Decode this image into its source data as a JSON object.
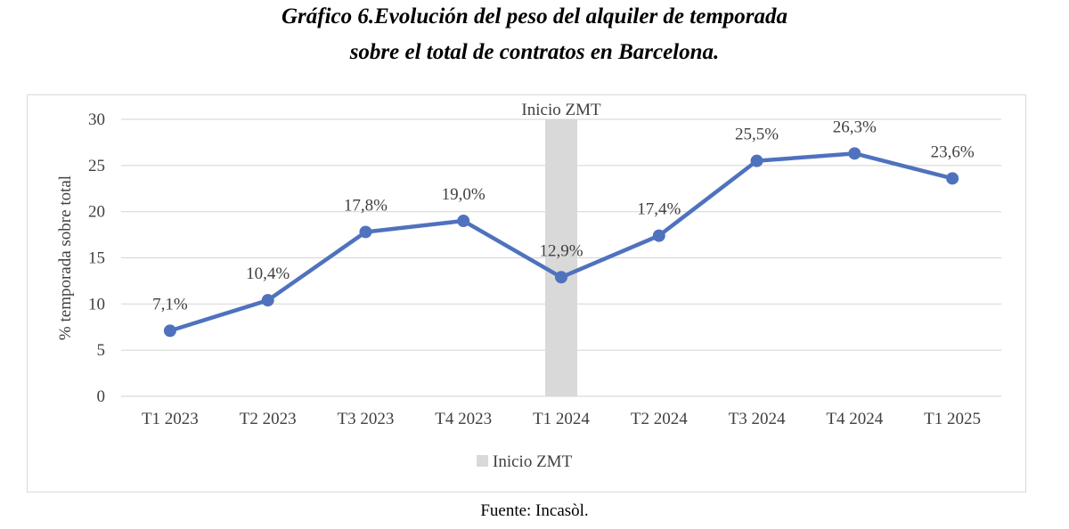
{
  "title": {
    "line1": "Gráfico 6.Evolución del peso del alquiler de temporada",
    "line2": "sobre el total de contratos en Barcelona."
  },
  "source": "Fuente: Incasòl.",
  "colors": {
    "line": "#4f72be",
    "band": "#d9d9d9",
    "grid": "#d9d9d9"
  },
  "chart_data": {
    "type": "line",
    "categories": [
      "T1 2023",
      "T2 2023",
      "T3 2023",
      "T4 2023",
      "T1 2024",
      "T2 2024",
      "T3 2024",
      "T4 2024",
      "T1 2025"
    ],
    "series": [
      {
        "name": "% temporada sobre total",
        "values": [
          7.1,
          10.4,
          17.8,
          19.0,
          12.9,
          17.4,
          25.5,
          26.3,
          23.6
        ],
        "data_labels": [
          "7,1%",
          "10,4%",
          "17,8%",
          "19,0%",
          "12,9%",
          "17,4%",
          "25,5%",
          "26,3%",
          "23,6%"
        ]
      }
    ],
    "ylabel": "% temporada sobre total",
    "ylim": [
      0,
      30
    ],
    "yticks": [
      "0",
      "5",
      "10",
      "15",
      "20",
      "25",
      "30"
    ],
    "annotation_band": {
      "category": "T1 2024",
      "label": "Inicio ZMT"
    },
    "legend": {
      "entries": [
        "Inicio ZMT"
      ],
      "position": "bottom"
    },
    "grid": true
  }
}
